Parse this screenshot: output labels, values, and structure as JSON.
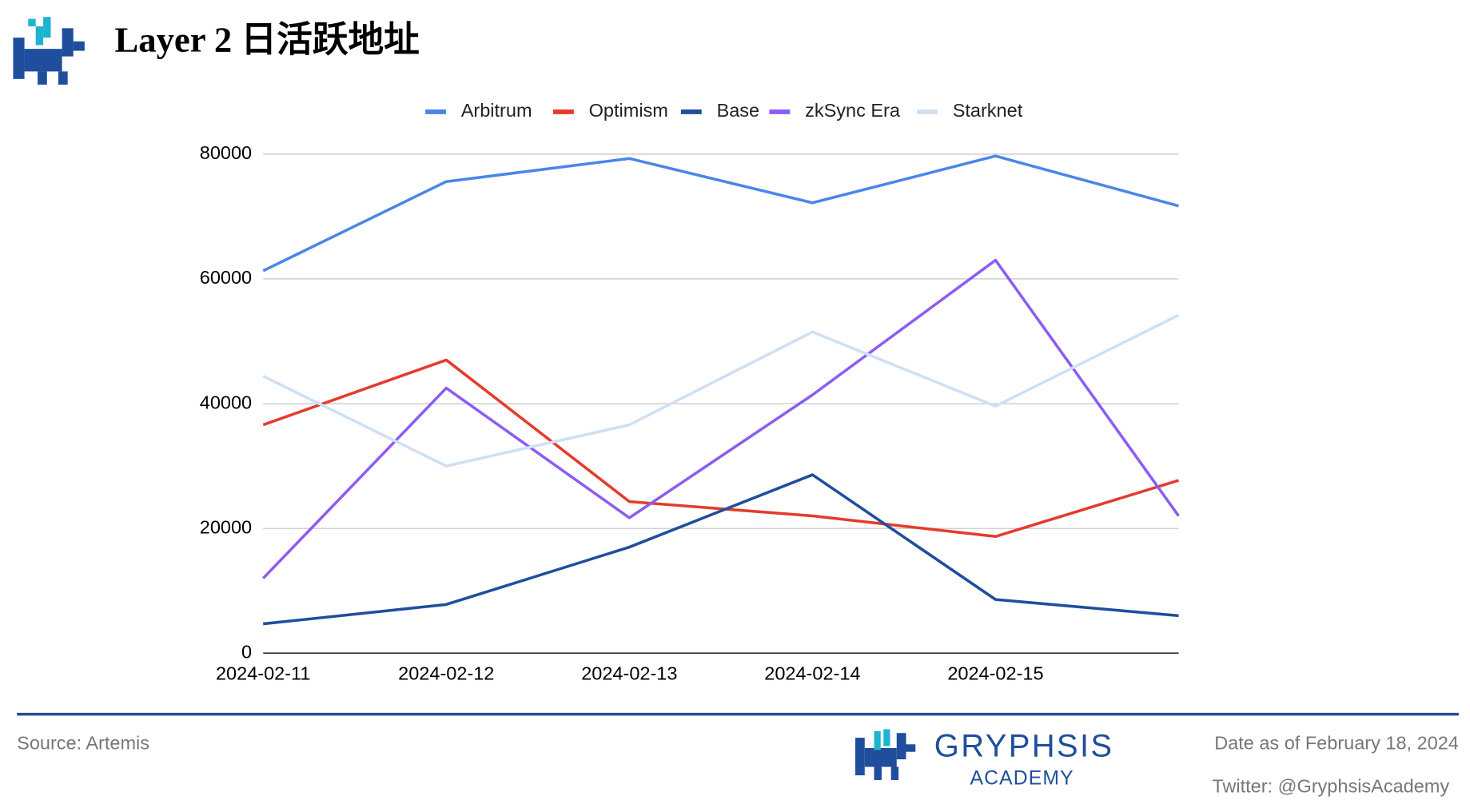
{
  "chart_data": {
    "type": "line",
    "title": "Layer 2 日活跃地址",
    "categories": [
      "2024-02-11",
      "2024-02-12",
      "2024-02-13",
      "2024-02-14",
      "2024-02-15",
      null
    ],
    "series": [
      {
        "name": "Arbitrum",
        "color": "#4a86e8",
        "values": [
          61300,
          75600,
          79300,
          72200,
          79700,
          71700
        ]
      },
      {
        "name": "Optimism",
        "color": "#e53b2c",
        "values": [
          36600,
          47000,
          24300,
          22000,
          18700,
          27700
        ]
      },
      {
        "name": "Base",
        "color": "#1f4e9c",
        "values": [
          4700,
          7800,
          17000,
          28600,
          8600,
          6000
        ]
      },
      {
        "name": "zkSync Era",
        "color": "#8c5cf5",
        "values": [
          12000,
          42500,
          21700,
          41400,
          63000,
          22000
        ]
      },
      {
        "name": "Starknet",
        "color": "#cfe0f3",
        "values": [
          44400,
          30000,
          36600,
          51500,
          39600,
          54200
        ]
      }
    ],
    "ylim": [
      0,
      80000
    ],
    "yticks": [
      0,
      20000,
      40000,
      60000,
      80000
    ],
    "grid": true,
    "legend": "top"
  },
  "footer": {
    "source": "Source: Artemis",
    "brand": "GRYPHSIS",
    "brand_sub": "ACADEMY",
    "date": "Date as of February 18, 2024",
    "twitter": "Twitter: @GryphsisAcademy"
  }
}
